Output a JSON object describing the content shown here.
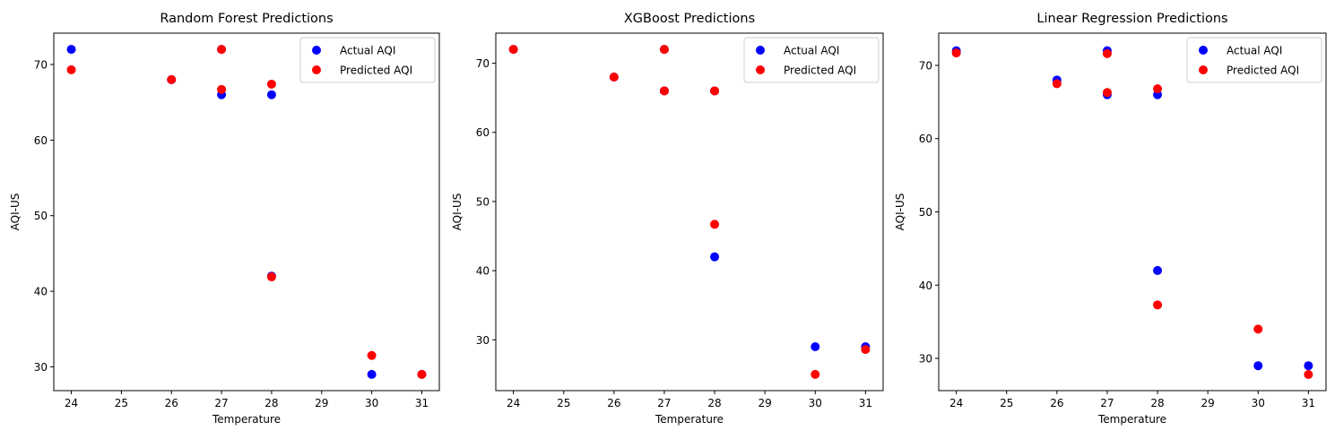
{
  "chart_data": [
    {
      "type": "scatter",
      "title": "Random Forest Predictions",
      "xlabel": "Temperature",
      "ylabel": "AQI-US",
      "xlim": [
        23.65,
        31.35
      ],
      "ylim": [
        26.85,
        74.15
      ],
      "xticks": [
        24,
        25,
        26,
        27,
        28,
        29,
        30,
        31
      ],
      "yticks": [
        30,
        40,
        50,
        60,
        70
      ],
      "legend_position": "top-right",
      "series": [
        {
          "name": "Actual AQI",
          "color": "#0000ff",
          "x": [
            24,
            26,
            27,
            27,
            28,
            28,
            30,
            31
          ],
          "y": [
            72,
            68,
            72,
            66,
            66,
            42,
            29,
            29
          ]
        },
        {
          "name": "Predicted AQI",
          "color": "#ff0000",
          "x": [
            24,
            26,
            27,
            27,
            28,
            28,
            30,
            31
          ],
          "y": [
            69.3,
            68,
            72,
            66.7,
            67.4,
            41.9,
            31.5,
            29
          ]
        }
      ]
    },
    {
      "type": "scatter",
      "title": "XGBoost Predictions",
      "xlabel": "Temperature",
      "ylabel": "AQI-US",
      "xlim": [
        23.65,
        31.35
      ],
      "ylim": [
        22.65,
        74.35
      ],
      "xticks": [
        24,
        25,
        26,
        27,
        28,
        29,
        30,
        31
      ],
      "yticks": [
        30,
        40,
        50,
        60,
        70
      ],
      "legend_position": "top-right",
      "series": [
        {
          "name": "Actual AQI",
          "color": "#0000ff",
          "x": [
            24,
            26,
            27,
            27,
            28,
            28,
            30,
            31
          ],
          "y": [
            72,
            68,
            72,
            66,
            66,
            42,
            29,
            29
          ]
        },
        {
          "name": "Predicted AQI",
          "color": "#ff0000",
          "x": [
            24,
            26,
            27,
            27,
            28,
            28,
            30,
            31
          ],
          "y": [
            72,
            68,
            72,
            66,
            66,
            46.7,
            25,
            28.6
          ]
        }
      ]
    },
    {
      "type": "scatter",
      "title": "Linear Regression Predictions",
      "xlabel": "Temperature",
      "ylabel": "AQI-US",
      "xlim": [
        23.65,
        31.35
      ],
      "ylim": [
        25.6,
        74.4
      ],
      "xticks": [
        24,
        25,
        26,
        27,
        28,
        29,
        30,
        31
      ],
      "yticks": [
        30,
        40,
        50,
        60,
        70
      ],
      "legend_position": "top-right",
      "series": [
        {
          "name": "Actual AQI",
          "color": "#0000ff",
          "x": [
            24,
            26,
            27,
            27,
            28,
            28,
            30,
            31
          ],
          "y": [
            72,
            68,
            72,
            66,
            66,
            42,
            29,
            29
          ]
        },
        {
          "name": "Predicted AQI",
          "color": "#ff0000",
          "x": [
            24,
            26,
            27,
            27,
            28,
            28,
            30,
            31
          ],
          "y": [
            71.7,
            67.5,
            71.6,
            66.3,
            66.8,
            37.3,
            34,
            27.8
          ]
        }
      ]
    }
  ]
}
